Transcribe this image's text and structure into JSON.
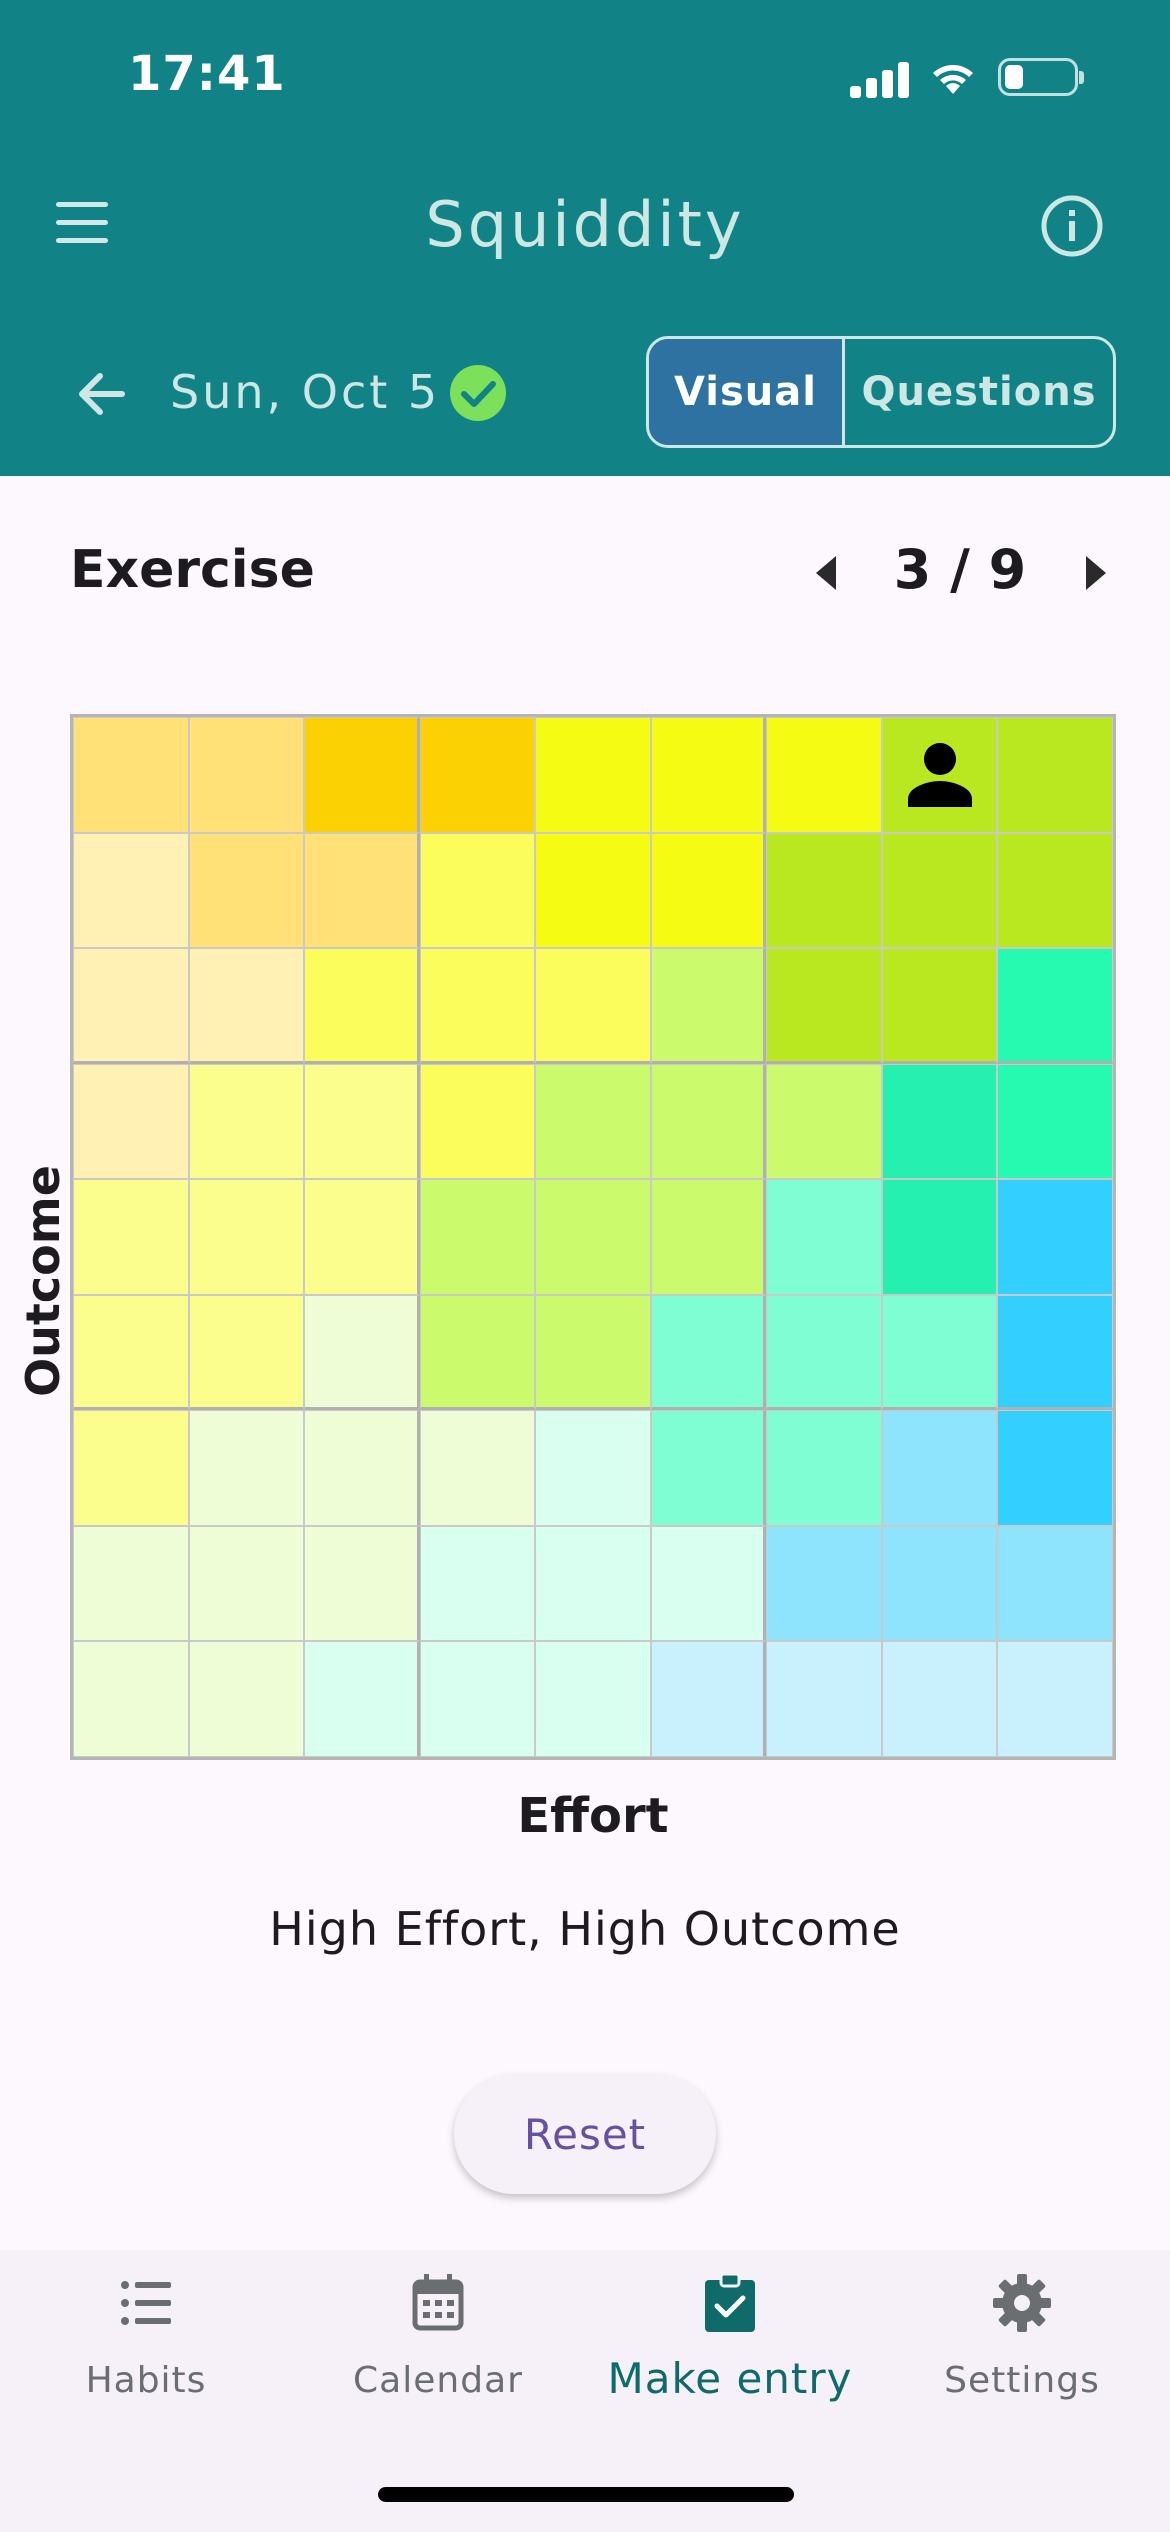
{
  "status_bar": {
    "time": "17:41",
    "battery_level": 0.2
  },
  "app": {
    "title": "Squiddity"
  },
  "header": {
    "date": "Sun, Oct 5",
    "entry_complete": true,
    "view_toggle": {
      "visual": "Visual",
      "questions": "Questions",
      "selected": "Visual"
    }
  },
  "question": {
    "title": "Exercise",
    "current": 3,
    "total": 9,
    "indicator": "3 / 9"
  },
  "grid": {
    "rows": 9,
    "cols": 9,
    "x_label": "Effort",
    "y_label": "Outcome",
    "selected_row": 1,
    "selected_col": 8,
    "colors": [
      [
        "#ffe177",
        "#ffe177",
        "#fbd104",
        "#fbd104",
        "#f6fb13",
        "#f6fb13",
        "#f6fb13",
        "#b9e821",
        "#b9e821"
      ],
      [
        "#fff1b3",
        "#ffe177",
        "#ffe177",
        "#fbfd5d",
        "#f6fb13",
        "#f6fb13",
        "#b9e821",
        "#b9e821",
        "#b9e821"
      ],
      [
        "#fff1b3",
        "#fff1b3",
        "#fbfd5d",
        "#fbfd5d",
        "#fbfd5d",
        "#cbfa6d",
        "#b9e821",
        "#b9e821",
        "#25fab0"
      ],
      [
        "#fff1b3",
        "#fbfd8c",
        "#fbfd8c",
        "#fbfd5d",
        "#cbfa6d",
        "#cbfa6d",
        "#cbfa6d",
        "#25f0b0",
        "#25fab0"
      ],
      [
        "#fbfd8c",
        "#fbfd8c",
        "#fbfd8c",
        "#cbfa6d",
        "#cbfa6d",
        "#cbfa6d",
        "#7ffed3",
        "#25f0b0",
        "#33cffe"
      ],
      [
        "#fbfd8c",
        "#fbfd8c",
        "#eefdd6",
        "#cbfa6d",
        "#cbfa6d",
        "#7ffed3",
        "#7ffed3",
        "#7ffed3",
        "#33cffe"
      ],
      [
        "#fbfd8c",
        "#eefdd6",
        "#eefdd6",
        "#eefdd6",
        "#d8fff0",
        "#7ffed3",
        "#7ffed3",
        "#8ee4fc",
        "#33cffe"
      ],
      [
        "#eefdd6",
        "#eefdd6",
        "#eefdd6",
        "#d8fff0",
        "#d8fff0",
        "#d8fff0",
        "#8ee4fc",
        "#8ee4fc",
        "#8ee4fc"
      ],
      [
        "#eefdd6",
        "#eefdd6",
        "#d8fff0",
        "#d8fff0",
        "#d8fff0",
        "#c8f1fd",
        "#c8f1fd",
        "#c8f1fd",
        "#c8f1fd"
      ]
    ]
  },
  "selection_text": "High Effort, High Outcome",
  "reset_label": "Reset",
  "bottom_nav": {
    "active": "Make entry",
    "items": [
      {
        "label": "Habits",
        "icon": "list-icon"
      },
      {
        "label": "Calendar",
        "icon": "calendar-icon"
      },
      {
        "label": "Make entry",
        "icon": "clipboard-check-icon"
      },
      {
        "label": "Settings",
        "icon": "gear-icon"
      }
    ]
  },
  "colors": {
    "header_bg": "#118387",
    "toggle_selected": "#2d72a0",
    "check_badge": "#7ce05a",
    "active_nav": "#0e6b6a",
    "reset_text": "#6750a4"
  }
}
